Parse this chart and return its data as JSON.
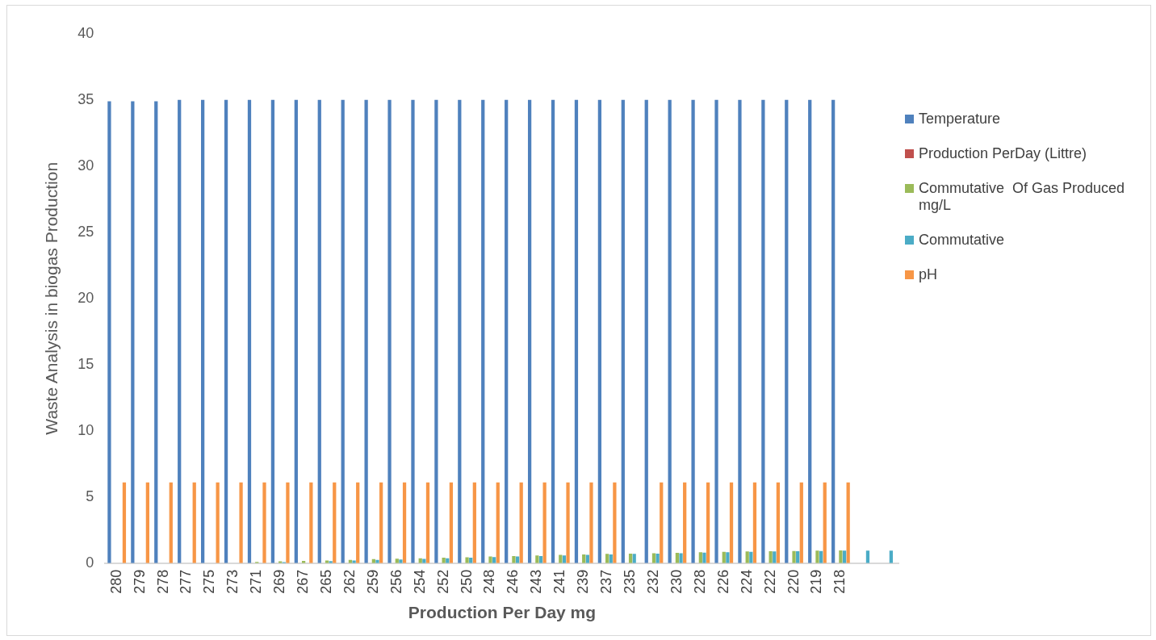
{
  "chart_data": {
    "type": "bar",
    "xlabel": "Production Per Day mg",
    "ylabel": "Waste Analysis in biogas Production",
    "categories": [
      "280",
      "279",
      "278",
      "277",
      "275",
      "273",
      "271",
      "269",
      "267",
      "265",
      "262",
      "259",
      "256",
      "254",
      "252",
      "250",
      "248",
      "246",
      "243",
      "241",
      "239",
      "237",
      "235",
      "232",
      "230",
      "228",
      "226",
      "224",
      "222",
      "220",
      "219",
      "218",
      null,
      null
    ],
    "series": [
      {
        "name": "Temperature",
        "color": "#4f81bd",
        "values": [
          34.9,
          34.9,
          34.9,
          35,
          35,
          35,
          35,
          35,
          35,
          35,
          35,
          35,
          35,
          35,
          35,
          35,
          35,
          35,
          35,
          35,
          35,
          35,
          35,
          35,
          35,
          35,
          35,
          35,
          35,
          35,
          35,
          35,
          null,
          null
        ]
      },
      {
        "name": "Production PerDay (Littre)",
        "color": "#c0504d",
        "values": [
          0,
          0,
          0,
          0,
          0,
          0,
          0,
          0,
          0,
          0,
          0,
          0,
          0,
          0,
          0,
          0,
          0,
          0,
          0,
          0,
          0,
          0,
          0,
          0,
          0,
          0,
          0,
          0,
          0,
          0,
          0,
          0,
          null,
          null
        ]
      },
      {
        "name": "Commutative  Of Gas Produced mg/L",
        "color": "#9bbb59",
        "values": [
          0,
          0,
          0,
          0,
          null,
          null,
          0.1,
          0.14,
          0.17,
          0.2,
          0.25,
          0.3,
          0.33,
          0.37,
          0.42,
          0.45,
          0.5,
          0.53,
          0.58,
          0.62,
          0.66,
          0.7,
          0.72,
          0.75,
          0.78,
          0.82,
          0.85,
          0.88,
          0.9,
          0.92,
          0.94,
          0.96,
          null,
          null
        ]
      },
      {
        "name": "Commutative",
        "color": "#4bacc6",
        "values": [
          0,
          0,
          0,
          0,
          0,
          null,
          null,
          0.08,
          null,
          0.15,
          0.2,
          0.25,
          0.28,
          0.32,
          0.37,
          0.41,
          0.46,
          0.5,
          0.54,
          0.58,
          0.62,
          0.66,
          0.7,
          0.72,
          0.75,
          0.79,
          0.82,
          0.85,
          0.88,
          0.9,
          0.92,
          0.94,
          0.95,
          0.95
        ]
      },
      {
        "name": "pH",
        "color": "#f79646",
        "values": [
          6.1,
          6.1,
          6.1,
          6.1,
          6.1,
          6.1,
          6.1,
          6.1,
          6.1,
          6.1,
          6.1,
          6.1,
          6.1,
          6.1,
          6.1,
          6.1,
          6.1,
          6.1,
          6.1,
          6.1,
          6.1,
          6.1,
          null,
          6.1,
          6.1,
          6.1,
          6.1,
          6.1,
          6.1,
          6.1,
          6.1,
          6.1,
          null,
          null
        ]
      }
    ],
    "ylim": [
      0,
      40
    ],
    "yticks": [
      0,
      5,
      10,
      15,
      20,
      25,
      30,
      35,
      40
    ],
    "grid": false,
    "legend": "right"
  }
}
